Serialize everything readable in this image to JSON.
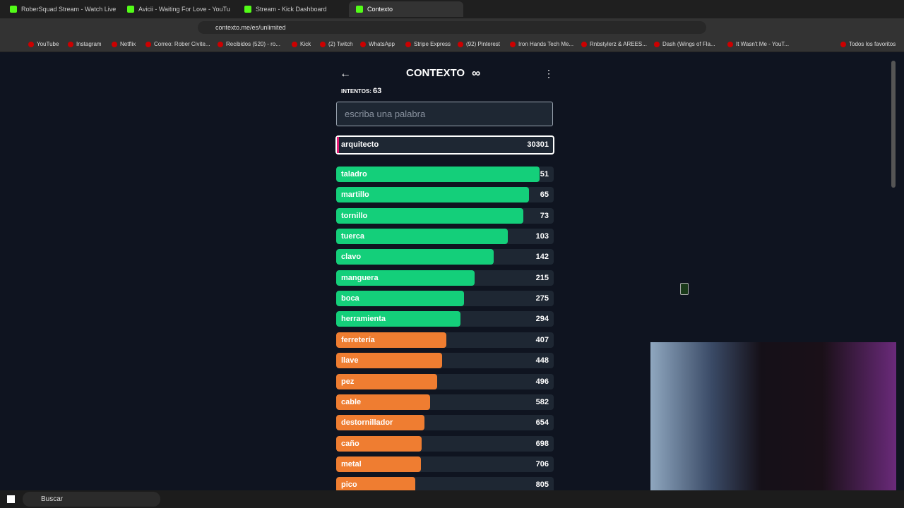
{
  "browser": {
    "tabs": [
      "RoberSquad Stream - Watch Live",
      "Avicii - Waiting For Love - YouTu",
      "Stream - Kick Dashboard",
      "Contexto"
    ],
    "url": "contexto.me/es/unlimited",
    "bookmarks": [
      "YouTube",
      "Instagram",
      "Netflix",
      "Correo: Rober Civite...",
      "Recibidos (520) - ro...",
      "Kick",
      "(2) Twitch",
      "WhatsApp",
      "Stripe Express",
      "(92) Pinterest",
      "Iron Hands Tech Me...",
      "Rnbstylerz & AREES...",
      "Dash (Wings of Fla...",
      "It Wasn't Me - YouT..."
    ],
    "all_bookmarks": "Todos los favoritos"
  },
  "game": {
    "title": "CONTEXTO",
    "attempts_label": "INTENTOS:",
    "attempts": 63,
    "input_placeholder": "escriba una palabra",
    "current_guess": {
      "word": "arquitecto",
      "rank": 30301
    },
    "guesses": [
      {
        "word": "taladro",
        "rank": 51
      },
      {
        "word": "martillo",
        "rank": 65
      },
      {
        "word": "tornillo",
        "rank": 73
      },
      {
        "word": "tuerca",
        "rank": 103
      },
      {
        "word": "clavo",
        "rank": 142
      },
      {
        "word": "manguera",
        "rank": 215
      },
      {
        "word": "boca",
        "rank": 275
      },
      {
        "word": "herramienta",
        "rank": 294
      },
      {
        "word": "ferretería",
        "rank": 407
      },
      {
        "word": "llave",
        "rank": 448
      },
      {
        "word": "pez",
        "rank": 496
      },
      {
        "word": "cable",
        "rank": 582
      },
      {
        "word": "destornillador",
        "rank": 654
      },
      {
        "word": "caño",
        "rank": 698
      },
      {
        "word": "metal",
        "rank": 706
      },
      {
        "word": "pico",
        "rank": 805
      }
    ]
  },
  "taskbar": {
    "search": "Buscar"
  }
}
